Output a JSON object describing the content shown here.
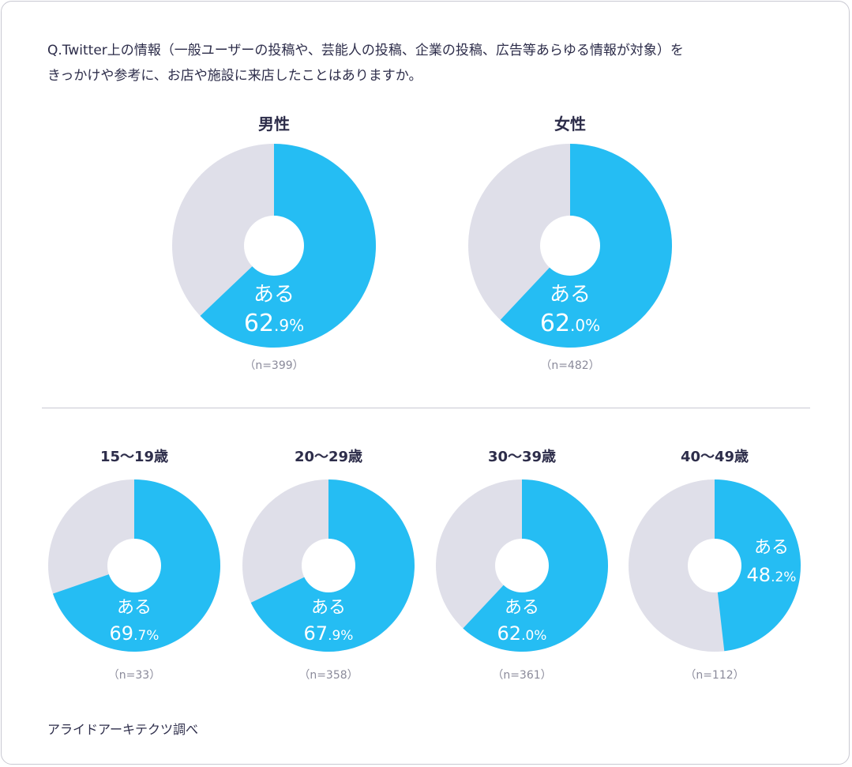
{
  "question": [
    "Q.Twitter上の情報（一般ユーザーの投稿や、芸能人の投稿、企業の投稿、広告等あらゆる情報が対象）を",
    "きっかけや参考に、お店や施設に来店したことはありますか。"
  ],
  "source": "アライドアーキテクツ調べ",
  "colors": {
    "yes": "#25bdf3",
    "other": "#dfdfe9"
  },
  "chart_data": [
    {
      "type": "pie",
      "title": "男性",
      "label": "ある",
      "value": 62.9,
      "int": "62",
      "dec": ".9%",
      "n": "（n=399）"
    },
    {
      "type": "pie",
      "title": "女性",
      "label": "ある",
      "value": 62.0,
      "int": "62",
      "dec": ".0%",
      "n": "（n=482）"
    },
    {
      "type": "pie",
      "title": "15〜19歳",
      "label": "ある",
      "value": 69.7,
      "int": "69",
      "dec": ".7%",
      "n": "（n=33）"
    },
    {
      "type": "pie",
      "title": "20〜29歳",
      "label": "ある",
      "value": 67.9,
      "int": "67",
      "dec": ".9%",
      "n": "（n=358）"
    },
    {
      "type": "pie",
      "title": "30〜39歳",
      "label": "ある",
      "value": 62.0,
      "int": "62",
      "dec": ".0%",
      "n": "（n=361）"
    },
    {
      "type": "pie",
      "title": "40〜49歳",
      "label": "ある",
      "value": 48.2,
      "int": "48",
      "dec": ".2%",
      "n": "（n=112）"
    }
  ]
}
